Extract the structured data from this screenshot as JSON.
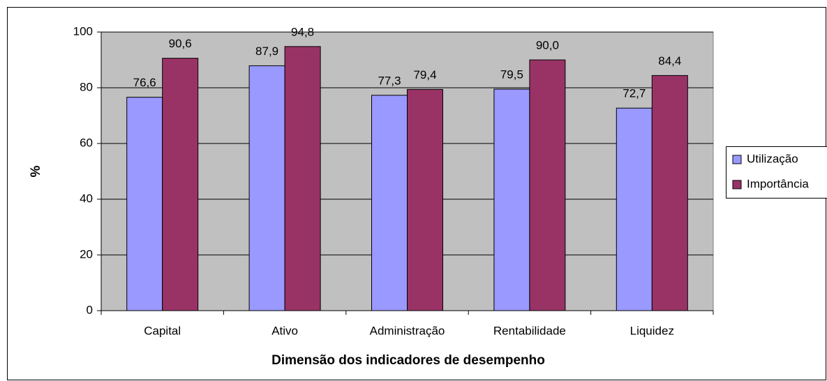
{
  "chart_data": {
    "type": "bar",
    "xlabel": "Dimensão dos indicadores de desempenho",
    "ylabel": "%",
    "categories": [
      "Capital",
      "Ativo",
      "Administração",
      "Rentabilidade",
      "Liquidez"
    ],
    "series": [
      {
        "name": "Utilização",
        "color": "#9999ff",
        "values": [
          76.6,
          87.9,
          77.3,
          79.5,
          72.7
        ],
        "value_labels": [
          "76,6",
          "87,9",
          "77,3",
          "79,5",
          "72,7"
        ]
      },
      {
        "name": "Importância",
        "color": "#993366",
        "values": [
          90.6,
          94.8,
          79.4,
          90.0,
          84.4
        ],
        "value_labels": [
          "90,6",
          "94,8",
          "79,4",
          "90,0",
          "84,4"
        ]
      }
    ],
    "ylim": [
      0,
      100
    ],
    "yticks": [
      0,
      20,
      40,
      60,
      80,
      100
    ],
    "grid": true,
    "legend": "right"
  }
}
